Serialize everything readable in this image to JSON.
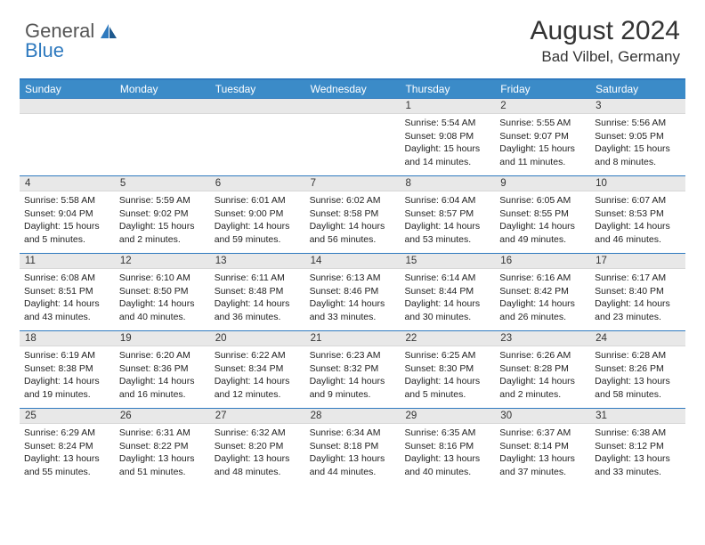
{
  "brand": {
    "general": "General",
    "blue": "Blue"
  },
  "header": {
    "month_title": "August 2024",
    "location": "Bad Vilbel, Germany"
  },
  "colors": {
    "header_bar": "#3b8bc8",
    "border": "#2f7abf",
    "daynum_bg": "#e8e8e8",
    "text": "#333333",
    "logo_gray": "#555555",
    "logo_blue": "#2f7abf"
  },
  "day_headers": [
    "Sunday",
    "Monday",
    "Tuesday",
    "Wednesday",
    "Thursday",
    "Friday",
    "Saturday"
  ],
  "weeks": [
    [
      {
        "num": "",
        "lines": []
      },
      {
        "num": "",
        "lines": []
      },
      {
        "num": "",
        "lines": []
      },
      {
        "num": "",
        "lines": []
      },
      {
        "num": "1",
        "lines": [
          "Sunrise: 5:54 AM",
          "Sunset: 9:08 PM",
          "Daylight: 15 hours",
          "and 14 minutes."
        ]
      },
      {
        "num": "2",
        "lines": [
          "Sunrise: 5:55 AM",
          "Sunset: 9:07 PM",
          "Daylight: 15 hours",
          "and 11 minutes."
        ]
      },
      {
        "num": "3",
        "lines": [
          "Sunrise: 5:56 AM",
          "Sunset: 9:05 PM",
          "Daylight: 15 hours",
          "and 8 minutes."
        ]
      }
    ],
    [
      {
        "num": "4",
        "lines": [
          "Sunrise: 5:58 AM",
          "Sunset: 9:04 PM",
          "Daylight: 15 hours",
          "and 5 minutes."
        ]
      },
      {
        "num": "5",
        "lines": [
          "Sunrise: 5:59 AM",
          "Sunset: 9:02 PM",
          "Daylight: 15 hours",
          "and 2 minutes."
        ]
      },
      {
        "num": "6",
        "lines": [
          "Sunrise: 6:01 AM",
          "Sunset: 9:00 PM",
          "Daylight: 14 hours",
          "and 59 minutes."
        ]
      },
      {
        "num": "7",
        "lines": [
          "Sunrise: 6:02 AM",
          "Sunset: 8:58 PM",
          "Daylight: 14 hours",
          "and 56 minutes."
        ]
      },
      {
        "num": "8",
        "lines": [
          "Sunrise: 6:04 AM",
          "Sunset: 8:57 PM",
          "Daylight: 14 hours",
          "and 53 minutes."
        ]
      },
      {
        "num": "9",
        "lines": [
          "Sunrise: 6:05 AM",
          "Sunset: 8:55 PM",
          "Daylight: 14 hours",
          "and 49 minutes."
        ]
      },
      {
        "num": "10",
        "lines": [
          "Sunrise: 6:07 AM",
          "Sunset: 8:53 PM",
          "Daylight: 14 hours",
          "and 46 minutes."
        ]
      }
    ],
    [
      {
        "num": "11",
        "lines": [
          "Sunrise: 6:08 AM",
          "Sunset: 8:51 PM",
          "Daylight: 14 hours",
          "and 43 minutes."
        ]
      },
      {
        "num": "12",
        "lines": [
          "Sunrise: 6:10 AM",
          "Sunset: 8:50 PM",
          "Daylight: 14 hours",
          "and 40 minutes."
        ]
      },
      {
        "num": "13",
        "lines": [
          "Sunrise: 6:11 AM",
          "Sunset: 8:48 PM",
          "Daylight: 14 hours",
          "and 36 minutes."
        ]
      },
      {
        "num": "14",
        "lines": [
          "Sunrise: 6:13 AM",
          "Sunset: 8:46 PM",
          "Daylight: 14 hours",
          "and 33 minutes."
        ]
      },
      {
        "num": "15",
        "lines": [
          "Sunrise: 6:14 AM",
          "Sunset: 8:44 PM",
          "Daylight: 14 hours",
          "and 30 minutes."
        ]
      },
      {
        "num": "16",
        "lines": [
          "Sunrise: 6:16 AM",
          "Sunset: 8:42 PM",
          "Daylight: 14 hours",
          "and 26 minutes."
        ]
      },
      {
        "num": "17",
        "lines": [
          "Sunrise: 6:17 AM",
          "Sunset: 8:40 PM",
          "Daylight: 14 hours",
          "and 23 minutes."
        ]
      }
    ],
    [
      {
        "num": "18",
        "lines": [
          "Sunrise: 6:19 AM",
          "Sunset: 8:38 PM",
          "Daylight: 14 hours",
          "and 19 minutes."
        ]
      },
      {
        "num": "19",
        "lines": [
          "Sunrise: 6:20 AM",
          "Sunset: 8:36 PM",
          "Daylight: 14 hours",
          "and 16 minutes."
        ]
      },
      {
        "num": "20",
        "lines": [
          "Sunrise: 6:22 AM",
          "Sunset: 8:34 PM",
          "Daylight: 14 hours",
          "and 12 minutes."
        ]
      },
      {
        "num": "21",
        "lines": [
          "Sunrise: 6:23 AM",
          "Sunset: 8:32 PM",
          "Daylight: 14 hours",
          "and 9 minutes."
        ]
      },
      {
        "num": "22",
        "lines": [
          "Sunrise: 6:25 AM",
          "Sunset: 8:30 PM",
          "Daylight: 14 hours",
          "and 5 minutes."
        ]
      },
      {
        "num": "23",
        "lines": [
          "Sunrise: 6:26 AM",
          "Sunset: 8:28 PM",
          "Daylight: 14 hours",
          "and 2 minutes."
        ]
      },
      {
        "num": "24",
        "lines": [
          "Sunrise: 6:28 AM",
          "Sunset: 8:26 PM",
          "Daylight: 13 hours",
          "and 58 minutes."
        ]
      }
    ],
    [
      {
        "num": "25",
        "lines": [
          "Sunrise: 6:29 AM",
          "Sunset: 8:24 PM",
          "Daylight: 13 hours",
          "and 55 minutes."
        ]
      },
      {
        "num": "26",
        "lines": [
          "Sunrise: 6:31 AM",
          "Sunset: 8:22 PM",
          "Daylight: 13 hours",
          "and 51 minutes."
        ]
      },
      {
        "num": "27",
        "lines": [
          "Sunrise: 6:32 AM",
          "Sunset: 8:20 PM",
          "Daylight: 13 hours",
          "and 48 minutes."
        ]
      },
      {
        "num": "28",
        "lines": [
          "Sunrise: 6:34 AM",
          "Sunset: 8:18 PM",
          "Daylight: 13 hours",
          "and 44 minutes."
        ]
      },
      {
        "num": "29",
        "lines": [
          "Sunrise: 6:35 AM",
          "Sunset: 8:16 PM",
          "Daylight: 13 hours",
          "and 40 minutes."
        ]
      },
      {
        "num": "30",
        "lines": [
          "Sunrise: 6:37 AM",
          "Sunset: 8:14 PM",
          "Daylight: 13 hours",
          "and 37 minutes."
        ]
      },
      {
        "num": "31",
        "lines": [
          "Sunrise: 6:38 AM",
          "Sunset: 8:12 PM",
          "Daylight: 13 hours",
          "and 33 minutes."
        ]
      }
    ]
  ]
}
